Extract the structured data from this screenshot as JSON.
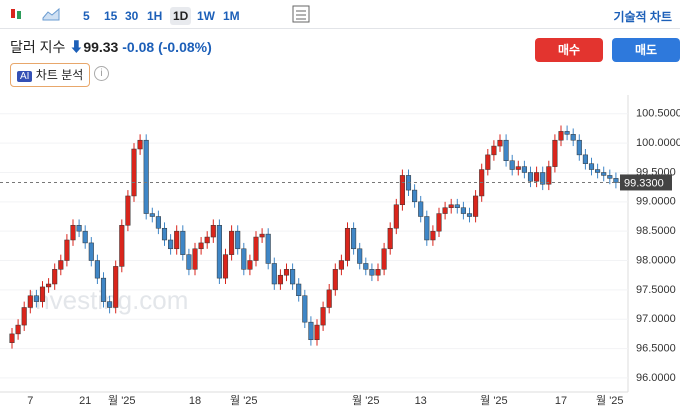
{
  "toolbar": {
    "intervals": [
      "5",
      "15",
      "30",
      "1H",
      "1D",
      "1W",
      "1M"
    ],
    "active_interval": 4,
    "tech_chart": "기술적 차트"
  },
  "quote": {
    "name": "달러 지수",
    "price": "99.33",
    "change": "-0.08",
    "change_pct": "(-0.08%)"
  },
  "buttons": {
    "buy": "매수",
    "sell": "매도"
  },
  "ai": {
    "badge": "AI",
    "label": "차트 분석"
  },
  "watermark": "Investing.com",
  "chart_data": {
    "type": "candlestick",
    "up_color": "#d9251c",
    "down_color": "#3f86c6",
    "grid": true,
    "ylim": [
      95.76,
      100.82
    ],
    "yticks": [
      {
        "value": 96.0,
        "label": "96.0000"
      },
      {
        "value": 96.5,
        "label": "96.5000"
      },
      {
        "value": 97.0,
        "label": "97.0000"
      },
      {
        "value": 97.5,
        "label": "97.5000"
      },
      {
        "value": 98.0,
        "label": "98.0000"
      },
      {
        "value": 98.5,
        "label": "98.5000"
      },
      {
        "value": 99.0,
        "label": "99.0000"
      },
      {
        "value": 99.5,
        "label": "99.5000"
      },
      {
        "value": 100.0,
        "label": "100.0000"
      },
      {
        "value": 100.5,
        "label": "100.5000"
      }
    ],
    "last": {
      "value": 99.33,
      "label": "99.3300"
    },
    "categories": [
      null,
      null,
      null,
      "7",
      null,
      null,
      null,
      null,
      null,
      null,
      null,
      null,
      "21",
      null,
      null,
      null,
      null,
      null,
      "월 '25",
      null,
      null,
      null,
      null,
      null,
      null,
      null,
      null,
      null,
      null,
      null,
      "18",
      null,
      null,
      null,
      null,
      null,
      null,
      null,
      "월 '25",
      null,
      null,
      null,
      null,
      null,
      null,
      null,
      null,
      null,
      null,
      null,
      null,
      null,
      null,
      null,
      null,
      null,
      null,
      null,
      "월 '25",
      null,
      null,
      null,
      null,
      null,
      null,
      null,
      null,
      "13",
      null,
      null,
      null,
      null,
      null,
      null,
      null,
      null,
      null,
      null,
      null,
      "월 '25",
      null,
      null,
      null,
      null,
      null,
      null,
      null,
      null,
      null,
      null,
      "17",
      null,
      null,
      null,
      null,
      null,
      null,
      null,
      "월 '25",
      null
    ],
    "open": [
      96.6,
      96.75,
      96.9,
      97.2,
      97.4,
      97.3,
      97.55,
      97.6,
      97.85,
      98.0,
      98.35,
      98.6,
      98.5,
      98.3,
      98.0,
      97.7,
      97.3,
      97.2,
      97.9,
      98.6,
      99.1,
      99.9,
      100.05,
      98.8,
      98.75,
      98.55,
      98.35,
      98.2,
      98.5,
      98.1,
      97.85,
      98.2,
      98.3,
      98.4,
      98.6,
      97.7,
      98.1,
      98.5,
      98.2,
      97.85,
      98.0,
      98.4,
      98.45,
      97.95,
      97.6,
      97.75,
      97.85,
      97.6,
      97.4,
      96.95,
      96.65,
      96.9,
      97.2,
      97.5,
      97.85,
      98.0,
      98.55,
      98.2,
      97.95,
      97.85,
      97.75,
      97.85,
      98.2,
      98.55,
      98.95,
      99.45,
      99.2,
      99.0,
      98.75,
      98.35,
      98.5,
      98.8,
      98.9,
      98.95,
      98.9,
      98.8,
      98.75,
      99.1,
      99.55,
      99.8,
      99.95,
      100.05,
      99.7,
      99.55,
      99.6,
      99.5,
      99.35,
      99.5,
      99.3,
      99.6,
      100.05,
      100.2,
      100.15,
      100.05,
      99.8,
      99.65,
      99.55,
      99.5,
      99.45,
      99.4
    ],
    "high": [
      96.85,
      97.0,
      97.3,
      97.5,
      97.5,
      97.65,
      97.7,
      97.95,
      98.1,
      98.45,
      98.7,
      98.7,
      98.6,
      98.4,
      98.1,
      97.8,
      97.4,
      98.0,
      98.7,
      99.2,
      100.0,
      100.15,
      100.15,
      98.9,
      98.85,
      98.65,
      98.45,
      98.6,
      98.6,
      98.2,
      98.3,
      98.4,
      98.5,
      98.7,
      98.7,
      98.2,
      98.6,
      98.6,
      98.3,
      98.1,
      98.5,
      98.55,
      98.55,
      98.05,
      97.85,
      97.95,
      97.95,
      97.7,
      97.5,
      97.05,
      97.0,
      97.3,
      97.6,
      97.95,
      98.1,
      98.65,
      98.65,
      98.3,
      98.05,
      97.95,
      97.95,
      98.3,
      98.65,
      99.05,
      99.55,
      99.55,
      99.3,
      99.1,
      98.85,
      98.6,
      98.9,
      99.0,
      99.05,
      99.05,
      99.0,
      98.9,
      99.2,
      99.65,
      99.9,
      100.05,
      100.15,
      100.15,
      99.8,
      99.7,
      99.7,
      99.6,
      99.6,
      99.6,
      99.7,
      100.15,
      100.3,
      100.3,
      100.25,
      100.15,
      99.9,
      99.75,
      99.65,
      99.6,
      99.55,
      99.5
    ],
    "low": [
      96.5,
      96.65,
      96.8,
      97.1,
      97.2,
      97.2,
      97.45,
      97.5,
      97.75,
      97.9,
      98.25,
      98.4,
      98.2,
      97.9,
      97.6,
      97.2,
      97.1,
      97.1,
      97.8,
      98.5,
      99.0,
      99.8,
      98.7,
      98.65,
      98.45,
      98.25,
      98.1,
      98.1,
      98.0,
      97.75,
      97.75,
      98.1,
      98.2,
      98.3,
      97.6,
      97.6,
      98.0,
      98.1,
      97.75,
      97.75,
      97.9,
      98.3,
      97.85,
      97.5,
      97.5,
      97.65,
      97.5,
      97.3,
      96.85,
      96.55,
      96.55,
      96.8,
      97.1,
      97.4,
      97.75,
      97.9,
      98.1,
      97.85,
      97.75,
      97.65,
      97.65,
      97.75,
      98.1,
      98.45,
      98.85,
      99.1,
      98.9,
      98.65,
      98.25,
      98.25,
      98.4,
      98.7,
      98.8,
      98.8,
      98.7,
      98.65,
      98.65,
      99.0,
      99.45,
      99.7,
      99.85,
      99.6,
      99.45,
      99.45,
      99.4,
      99.25,
      99.25,
      99.2,
      99.2,
      99.5,
      99.95,
      100.05,
      99.95,
      99.7,
      99.55,
      99.45,
      99.4,
      99.35,
      99.3,
      99.23
    ],
    "close": [
      96.75,
      96.9,
      97.2,
      97.4,
      97.3,
      97.55,
      97.6,
      97.85,
      98.0,
      98.35,
      98.6,
      98.5,
      98.3,
      98.0,
      97.7,
      97.3,
      97.2,
      97.9,
      98.6,
      99.1,
      99.9,
      100.05,
      98.8,
      98.75,
      98.55,
      98.35,
      98.2,
      98.5,
      98.1,
      97.85,
      98.2,
      98.3,
      98.4,
      98.6,
      97.7,
      98.1,
      98.5,
      98.2,
      97.85,
      98.0,
      98.4,
      98.45,
      97.95,
      97.6,
      97.75,
      97.85,
      97.6,
      97.4,
      96.95,
      96.65,
      96.9,
      97.2,
      97.5,
      97.85,
      98.0,
      98.55,
      98.2,
      97.95,
      97.85,
      97.75,
      97.85,
      98.2,
      98.55,
      98.95,
      99.45,
      99.2,
      99.0,
      98.75,
      98.35,
      98.5,
      98.8,
      98.9,
      98.95,
      98.9,
      98.8,
      98.75,
      99.1,
      99.55,
      99.8,
      99.95,
      100.05,
      99.7,
      99.55,
      99.6,
      99.5,
      99.35,
      99.5,
      99.3,
      99.6,
      100.05,
      100.2,
      100.15,
      100.05,
      99.8,
      99.65,
      99.55,
      99.5,
      99.45,
      99.4,
      99.33
    ]
  }
}
